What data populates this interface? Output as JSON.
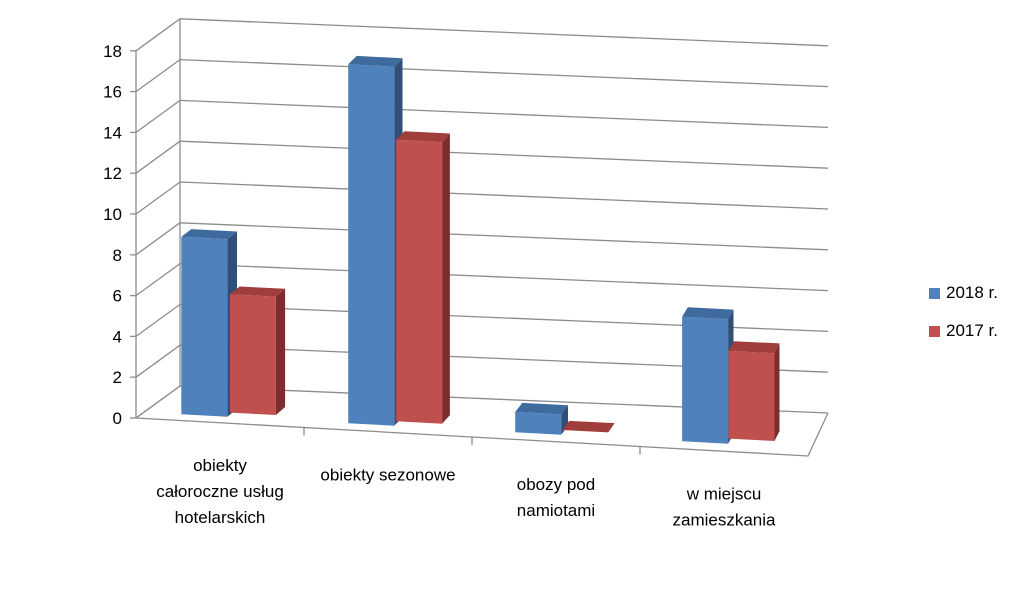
{
  "chart_data": {
    "type": "bar",
    "categories": [
      [
        "obiekty",
        "całoroczne usług",
        "hotelarskich"
      ],
      [
        "obiekty sezonowe"
      ],
      [
        "obozy pod",
        "namiotami"
      ],
      [
        "w miejscu",
        "zamieszkania"
      ]
    ],
    "series": [
      {
        "name": "2018 r.",
        "values": [
          8.7,
          17.6,
          1.0,
          6.1
        ],
        "color": "#4F81BD",
        "top": "#3F6A9E",
        "side": "#2F4F78"
      },
      {
        "name": "2017 r.",
        "values": [
          5.8,
          13.8,
          0.0,
          4.3
        ],
        "color": "#C0504D",
        "top": "#A03E3B",
        "side": "#7D2E2C"
      }
    ],
    "ylim": [
      0,
      18
    ],
    "yticks": [
      0,
      2,
      4,
      6,
      8,
      10,
      12,
      14,
      16,
      18
    ],
    "grid": true,
    "legend": "right"
  }
}
